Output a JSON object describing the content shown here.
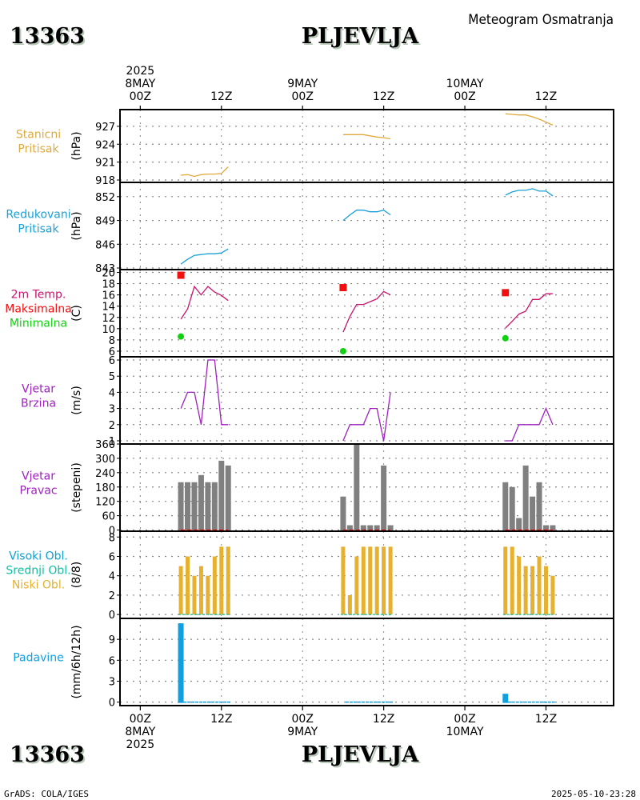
{
  "header": {
    "station_id": "13363",
    "station_name": "PLJEVLJA",
    "subtitle": "Meteogram Osmatranja"
  },
  "footer": {
    "station_id": "13363",
    "station_name": "PLJEVLJA",
    "credit": "GrADS: COLA/IGES",
    "timestamp": "2025-05-10-23:28"
  },
  "colors": {
    "station_pressure": "#e0a93c",
    "reduced_pressure": "#1aa0d8",
    "temperature": "#c8146e",
    "tmax": "#f01010",
    "tmin": "#10d010",
    "wind": "#a020c0",
    "wind_dir_bar": "#808080",
    "wind_dir_zero": "#e01010",
    "clouds_low": "#e6b030",
    "clouds_mid": "#10c0a0",
    "clouds_high": "#10a0d0",
    "precip": "#10a0e0"
  },
  "chart_data": {
    "type": "line",
    "title": "PLJEVLJA",
    "x_axis": {
      "unit": "hours since 2025-05-08 00Z",
      "range": [
        -3,
        70
      ],
      "ticks": [
        {
          "h": 0,
          "top": [
            "2025",
            "8MAY",
            "00Z"
          ],
          "bottom": [
            "00Z",
            "8MAY",
            "2025"
          ]
        },
        {
          "h": 12,
          "top": [
            "",
            "",
            "12Z"
          ],
          "bottom": [
            "12Z",
            "",
            ""
          ]
        },
        {
          "h": 24,
          "top": [
            "",
            "9MAY",
            "00Z"
          ],
          "bottom": [
            "00Z",
            "9MAY",
            ""
          ]
        },
        {
          "h": 36,
          "top": [
            "",
            "",
            "12Z"
          ],
          "bottom": [
            "12Z",
            "",
            ""
          ]
        },
        {
          "h": 48,
          "top": [
            "",
            "10MAY",
            "00Z"
          ],
          "bottom": [
            "00Z",
            "10MAY",
            ""
          ]
        },
        {
          "h": 60,
          "top": [
            "",
            "",
            "12Z"
          ],
          "bottom": [
            "12Z",
            "",
            ""
          ]
        }
      ],
      "grid": true
    },
    "hours": [
      [
        6,
        7,
        8,
        9,
        10,
        11,
        12,
        13
      ],
      [
        30,
        31,
        32,
        33,
        34,
        35,
        36,
        37
      ],
      [
        54,
        55,
        56,
        57,
        58,
        59,
        60,
        61
      ]
    ],
    "panels": [
      {
        "id": "station-pressure",
        "labels": [
          "Stanicni",
          "Pritisak"
        ],
        "label_colors": [
          "station_pressure",
          "station_pressure"
        ],
        "ylabel": "(hPa)",
        "ylim": [
          917.6,
          929.8
        ],
        "yticks": [
          918,
          921,
          924,
          927
        ],
        "type": "line",
        "series": [
          {
            "name": "Stanicni Pritisak",
            "color": "station_pressure",
            "values": [
              [
                918.8,
                918.9,
                918.6,
                918.9,
                919.0,
                919.0,
                919.1,
                920.2
              ],
              [
                925.6,
                925.6,
                925.6,
                925.6,
                925.4,
                925.2,
                925.1,
                924.9
              ],
              [
                929.1,
                929.0,
                928.9,
                928.9,
                928.6,
                928.2,
                927.7,
                927.2
              ]
            ]
          }
        ]
      },
      {
        "id": "reduced-pressure",
        "labels": [
          "Redukovani",
          "Pritisak"
        ],
        "label_colors": [
          "reduced_pressure",
          "reduced_pressure"
        ],
        "ylabel": "(hPa)",
        "ylim": [
          842.8,
          853.8
        ],
        "yticks": [
          843,
          846,
          849,
          852
        ],
        "type": "line",
        "series": [
          {
            "name": "Redukovani Pritisak",
            "color": "reduced_pressure",
            "values": [
              [
                843.5,
                844.1,
                844.6,
                844.7,
                844.8,
                844.8,
                844.9,
                845.4
              ],
              [
                849.0,
                849.7,
                850.3,
                850.3,
                850.1,
                850.1,
                850.3,
                849.7
              ],
              [
                852.2,
                852.6,
                852.8,
                852.8,
                853.0,
                852.7,
                852.7,
                852.1
              ]
            ]
          }
        ]
      },
      {
        "id": "temperature",
        "labels": [
          "2m Temp.",
          "Maksimalna",
          "Minimalna"
        ],
        "label_colors": [
          "temperature",
          "tmax",
          "tmin"
        ],
        "ylabel": "(C)",
        "ylim": [
          5,
          20.5
        ],
        "yticks": [
          6,
          8,
          10,
          12,
          14,
          16,
          18,
          20
        ],
        "type": "line",
        "series": [
          {
            "name": "2m Temp.",
            "color": "temperature",
            "values": [
              [
                11.7,
                13.5,
                17.5,
                16.0,
                17.5,
                16.5,
                15.9,
                15.0
              ],
              [
                9.4,
                12.2,
                14.3,
                14.3,
                14.8,
                15.3,
                16.6,
                16.0
              ],
              [
                10.1,
                11.3,
                12.6,
                13.1,
                15.2,
                15.2,
                16.2,
                16.2
              ]
            ]
          }
        ],
        "markers": [
          {
            "name": "Maksimalna",
            "shape": "square",
            "color": "tmax",
            "points": [
              [
                6,
                19.5
              ],
              [
                30,
                17.3
              ],
              [
                54,
                16.4
              ]
            ]
          },
          {
            "name": "Minimalna",
            "shape": "circle",
            "color": "tmin",
            "points": [
              [
                6,
                8.6
              ],
              [
                30,
                6.0
              ],
              [
                54,
                8.3
              ]
            ]
          }
        ]
      },
      {
        "id": "wind-speed",
        "labels": [
          "Vjetar",
          "Brzina"
        ],
        "label_colors": [
          "wind",
          "wind"
        ],
        "ylabel": "(m/s)",
        "ylim": [
          0.8,
          6.2
        ],
        "yticks": [
          1,
          2,
          3,
          4,
          5,
          6
        ],
        "type": "line",
        "series": [
          {
            "name": "Vjetar Brzina",
            "color": "wind",
            "values": [
              [
                3,
                4,
                4,
                2,
                6,
                6,
                2,
                2
              ],
              [
                1,
                2,
                2,
                2,
                3,
                3,
                1,
                4
              ],
              [
                1,
                1,
                2,
                2,
                2,
                2,
                3,
                2
              ]
            ]
          }
        ]
      },
      {
        "id": "wind-direction",
        "labels": [
          "Vjetar",
          "Pravac"
        ],
        "label_colors": [
          "wind",
          "wind"
        ],
        "ylabel": "(stepeni)",
        "ylim": [
          -5,
          360
        ],
        "yticks": [
          0,
          60,
          120,
          180,
          240,
          300,
          360
        ],
        "type": "bar",
        "series": [
          {
            "name": "Vjetar Pravac",
            "color": "wind_dir_bar",
            "values": [
              [
                200,
                200,
                200,
                230,
                200,
                200,
                290,
                270
              ],
              [
                140,
                20,
                360,
                20,
                20,
                20,
                270,
                20
              ],
              [
                200,
                180,
                50,
                270,
                140,
                200,
                20,
                20
              ]
            ]
          }
        ]
      },
      {
        "id": "clouds",
        "labels": [
          "Visoki Obl.",
          "Srednji Obl.",
          "Niski Obl."
        ],
        "label_colors": [
          "clouds_high",
          "clouds_mid",
          "clouds_low"
        ],
        "ylabel": "(8/8)",
        "ylim": [
          -0.4,
          8.6
        ],
        "yticks": [
          0,
          2,
          4,
          6,
          8
        ],
        "type": "bar",
        "series": [
          {
            "name": "Niski Obl.",
            "color": "clouds_low",
            "values": [
              [
                5,
                6,
                4,
                5,
                4,
                6,
                7,
                7
              ],
              [
                7,
                2,
                6,
                7,
                7,
                7,
                7,
                7
              ],
              [
                7,
                7,
                6,
                5,
                5,
                6,
                5,
                4
              ]
            ]
          },
          {
            "name": "Srednji Obl.",
            "color": "clouds_mid",
            "values": [
              [
                0,
                0,
                0,
                0,
                0,
                0,
                0,
                0
              ],
              [
                0,
                0,
                0,
                0,
                0,
                0,
                0,
                0
              ],
              [
                0,
                0,
                0,
                0,
                0,
                0,
                0,
                0
              ]
            ]
          },
          {
            "name": "Visoki Obl.",
            "color": "clouds_high",
            "values": [
              [
                0,
                0,
                0,
                0,
                0,
                0,
                0,
                0
              ],
              [
                0,
                0,
                0,
                0,
                0,
                0,
                0,
                0
              ],
              [
                0,
                0,
                0,
                0,
                0,
                0,
                0,
                0
              ]
            ]
          }
        ]
      },
      {
        "id": "precipitation",
        "labels": [
          "Padavine"
        ],
        "label_colors": [
          "precip"
        ],
        "ylabel": "(mm/6h/12h)",
        "ylim": [
          -0.5,
          12.0
        ],
        "yticks": [
          0,
          3,
          6,
          9
        ],
        "type": "bar",
        "series": [
          {
            "name": "Padavine",
            "color": "precip",
            "values": [
              [
                11.3,
                0,
                0,
                0,
                0,
                0,
                0,
                0
              ],
              [
                0,
                0,
                0,
                0,
                0,
                0,
                0,
                0
              ],
              [
                1.2,
                0,
                0,
                0,
                0,
                0,
                0,
                0
              ]
            ]
          }
        ]
      }
    ]
  }
}
